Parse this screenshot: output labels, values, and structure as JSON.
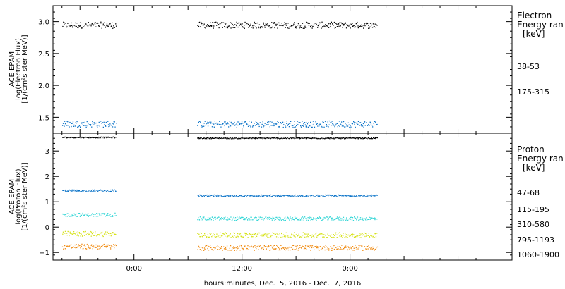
{
  "chart_data": [
    {
      "type": "scatter",
      "ylabel_lines": [
        "ACE EPAM",
        "log(Electron Flux)",
        "[1/(cm²s ster MeV)]"
      ],
      "ylim": [
        1.25,
        3.25
      ],
      "yticks": [
        1.5,
        2.0,
        2.5,
        3.0
      ],
      "ytick_labels": [
        "1.5",
        "2.0",
        "2.5",
        "3.0"
      ],
      "legend": {
        "title_lines": [
          "Electron",
          "Energy ran",
          "[keV]"
        ],
        "entries": [
          {
            "label": "38-53",
            "color": "#000000"
          },
          {
            "label": "175-315",
            "color": "#0a73c8"
          }
        ]
      },
      "series": [
        {
          "name": "38-53",
          "color": "#000000",
          "level": 2.95,
          "spread": 0.05
        },
        {
          "name": "175-315",
          "color": "#0a73c8",
          "level": 1.4,
          "spread": 0.05
        }
      ]
    },
    {
      "type": "scatter",
      "ylabel_lines": [
        "ACE EPAM",
        "log(Proton Flux)",
        "[1/(cm²s ster MeV)]"
      ],
      "ylim": [
        -1.3,
        3.7
      ],
      "yticks": [
        -1,
        0,
        1,
        2,
        3
      ],
      "ytick_labels": [
        "−1",
        "0",
        "1",
        "2",
        "3"
      ],
      "legend": {
        "title_lines": [
          "Proton",
          "Energy ran",
          "[keV]"
        ],
        "entries": [
          {
            "label": "47-68",
            "color": "#000000"
          },
          {
            "label": "115-195",
            "color": "#0a73c8"
          },
          {
            "label": "310-580",
            "color": "#34d6d6"
          },
          {
            "label": "795-1193",
            "color": "#d6e218"
          },
          {
            "label": "1060-1900",
            "color": "#f08a10"
          }
        ]
      },
      "series": [
        {
          "name": "47-68",
          "color": "#000000",
          "seg1_level": 3.55,
          "seg2_level": 3.52,
          "spread": 0.02
        },
        {
          "name": "115-195",
          "color": "#0a73c8",
          "seg1_level": 1.45,
          "seg2_level": 1.25,
          "spread": 0.04
        },
        {
          "name": "310-580",
          "color": "#34d6d6",
          "seg1_level": 0.5,
          "seg2_level": 0.35,
          "spread": 0.07
        },
        {
          "name": "795-1193",
          "color": "#d6e218",
          "seg1_level": -0.25,
          "seg2_level": -0.3,
          "spread": 0.1
        },
        {
          "name": "1060-1900",
          "color": "#f08a10",
          "seg1_level": -0.75,
          "seg2_level": -0.8,
          "spread": 0.1
        }
      ]
    }
  ],
  "x_axis": {
    "range_hours": [
      -9,
      42
    ],
    "ticks_hours": [
      0,
      12,
      24
    ],
    "tick_labels": [
      "0:00",
      "12:00",
      "0:00"
    ],
    "minor_step_hours": 2,
    "xlabel": "hours:minutes, Dec.  5, 2016 - Dec.  7, 2016"
  },
  "data_segments_hours": [
    [
      -8,
      -2
    ],
    [
      7,
      27
    ]
  ]
}
